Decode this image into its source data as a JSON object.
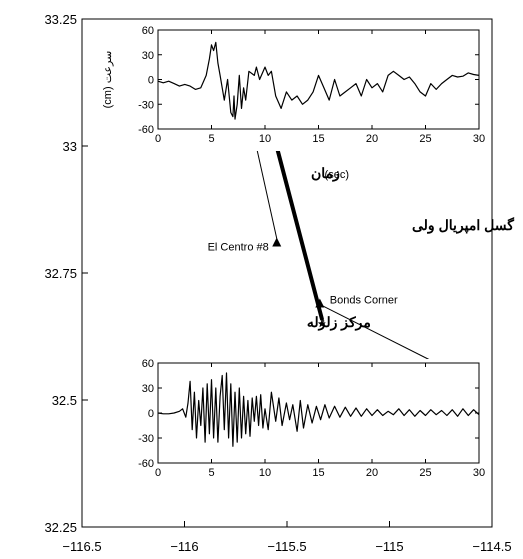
{
  "chart_data": [
    {
      "type": "map",
      "xlim": [
        -116.5,
        -114.5
      ],
      "ylim": [
        32.25,
        33.25
      ],
      "x_ticks": [
        "−116.5",
        "−116",
        "−115.5",
        "−115",
        "−114.5"
      ],
      "y_ticks": [
        "33.25",
        "33",
        "32.75",
        "32.5",
        "32.25"
      ],
      "fault": {
        "label": "گسل امپریال ولی",
        "x": [
          -115.59,
          -115.33
        ],
        "y": [
          33.06,
          32.66
        ]
      },
      "stations": [
        {
          "name": "El Centro #8",
          "lon": -115.55,
          "lat": 32.81
        },
        {
          "name": "Bonds Corner",
          "lon": -115.34,
          "lat": 32.69
        }
      ],
      "epicenter": {
        "label": "مرکز زلزله",
        "lon": -115.33,
        "lat": 32.65
      }
    },
    {
      "type": "line",
      "station": "El Centro #8",
      "ylabel": "سرعت (cm)",
      "xlim": [
        0,
        30
      ],
      "ylim": [
        -60,
        60
      ],
      "x_ticks": [
        0,
        5,
        10,
        15,
        20,
        25,
        30
      ],
      "y_ticks": [
        60,
        30,
        0,
        -30,
        -60
      ],
      "x": [
        0,
        0.5,
        1,
        1.5,
        2,
        2.5,
        3,
        3.5,
        4,
        4.5,
        4.8,
        5,
        5.2,
        5.4,
        5.6,
        5.8,
        6,
        6.2,
        6.5,
        6.8,
        7,
        7.1,
        7.2,
        7.4,
        7.6,
        7.8,
        8,
        8.2,
        8.5,
        9,
        9.2,
        9.5,
        10,
        10.3,
        10.6,
        11,
        11.5,
        12,
        12.5,
        13,
        13.5,
        14,
        14.5,
        15,
        15.5,
        16,
        16.5,
        17,
        17.5,
        18,
        18.5,
        19,
        19.5,
        20,
        20.5,
        21,
        21.5,
        22,
        22.5,
        23,
        23.5,
        24,
        24.5,
        25,
        25.5,
        26,
        26.5,
        27,
        27.5,
        28,
        28.5,
        29,
        29.5,
        30
      ],
      "y": [
        -2,
        -4,
        -2,
        -5,
        -8,
        -6,
        -8,
        -12,
        -10,
        5,
        25,
        42,
        35,
        45,
        20,
        5,
        -10,
        -25,
        0,
        -40,
        -45,
        -20,
        -48,
        -30,
        5,
        -35,
        -10,
        -25,
        10,
        5,
        15,
        0,
        15,
        5,
        10,
        -20,
        -35,
        -15,
        -25,
        -20,
        -30,
        -25,
        -15,
        5,
        -10,
        -25,
        0,
        -20,
        -15,
        -10,
        -5,
        -20,
        0,
        -10,
        -5,
        -15,
        5,
        10,
        5,
        0,
        3,
        -5,
        -15,
        -20,
        -5,
        -12,
        -5,
        0,
        5,
        3,
        4,
        8,
        6,
        5
      ]
    },
    {
      "type": "line",
      "station": "Bonds Corner",
      "xlim": [
        0,
        30
      ],
      "ylim": [
        -60,
        60
      ],
      "x_ticks": [
        0,
        5,
        10,
        15,
        20,
        25,
        30
      ],
      "y_ticks": [
        60,
        30,
        0,
        -30,
        -60
      ],
      "x": [
        0,
        0.5,
        1,
        1.5,
        2,
        2.3,
        2.6,
        2.8,
        3,
        3.2,
        3.4,
        3.6,
        3.8,
        4,
        4.2,
        4.4,
        4.6,
        4.8,
        5,
        5.2,
        5.4,
        5.6,
        5.8,
        6,
        6.2,
        6.4,
        6.6,
        6.8,
        7,
        7.2,
        7.4,
        7.6,
        7.8,
        8,
        8.2,
        8.4,
        8.6,
        8.8,
        9,
        9.2,
        9.4,
        9.6,
        9.8,
        10,
        10.3,
        10.6,
        11,
        11.3,
        11.6,
        12,
        12.3,
        12.6,
        13,
        13.3,
        13.6,
        14,
        14.4,
        14.8,
        15.2,
        15.6,
        16,
        16.5,
        17,
        17.5,
        18,
        18.5,
        19,
        19.5,
        20,
        20.5,
        21,
        21.5,
        22,
        22.5,
        23,
        23.5,
        24,
        24.5,
        25,
        25.5,
        26,
        26.5,
        27,
        27.5,
        28,
        28.5,
        29,
        29.5,
        30
      ],
      "y": [
        0,
        -1,
        -1,
        0,
        2,
        5,
        -5,
        12,
        38,
        -20,
        25,
        -30,
        15,
        -15,
        30,
        -35,
        35,
        -25,
        40,
        -30,
        30,
        -35,
        20,
        45,
        -20,
        48,
        -30,
        35,
        -40,
        25,
        -35,
        30,
        -30,
        20,
        -25,
        15,
        -28,
        18,
        -10,
        20,
        -15,
        22,
        -18,
        5,
        -20,
        25,
        -10,
        18,
        -15,
        12,
        -8,
        10,
        -22,
        15,
        -18,
        10,
        -12,
        8,
        -8,
        10,
        -6,
        8,
        -5,
        7,
        -4,
        6,
        -4,
        5,
        -3,
        4,
        -3,
        2,
        -2,
        5,
        -3,
        4,
        -4,
        3,
        -3,
        4,
        -2,
        3,
        -3,
        4,
        -4,
        5,
        -3,
        4,
        -2
      ]
    }
  ]
}
